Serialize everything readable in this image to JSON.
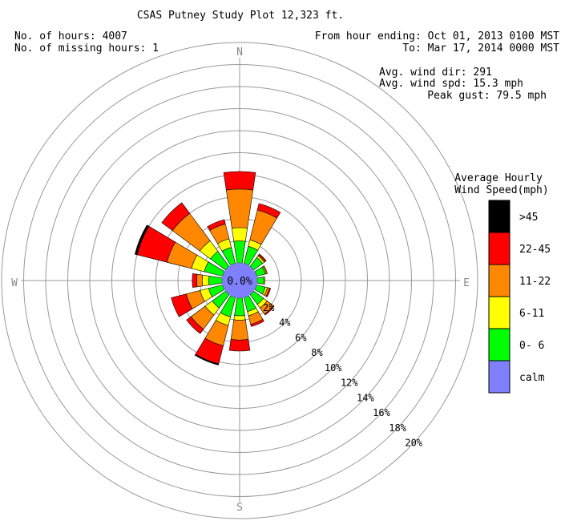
{
  "header": {
    "title": "CSAS Putney Study Plot 12,323 ft.",
    "hours_label": "No. of hours: 4007",
    "missing_label": "No. of missing hours: 1",
    "period_from": "From hour ending: Oct 01, 2013 0100 MST",
    "period_to": "To: Mar 17, 2014 0000 MST",
    "avg_dir": "Avg. wind dir: 291",
    "avg_spd": "Avg. wind spd: 15.3 mph",
    "peak_gust": "Peak gust: 79.5 mph"
  },
  "compass": {
    "n": "N",
    "e": "E",
    "s": "S",
    "w": "W"
  },
  "center_label": "0.0%",
  "legend": {
    "title_line1": "Average Hourly",
    "title_line2": "Wind Speed(mph)",
    "items": [
      {
        "label": ">45",
        "color": "#000000"
      },
      {
        "label": "22-45",
        "color": "#ff0000"
      },
      {
        "label": "11-22",
        "color": "#ff8800"
      },
      {
        "label": "6-11",
        "color": "#ffff00"
      },
      {
        "label": "0- 6",
        "color": "#00ff00"
      },
      {
        "label": "calm",
        "color": "#8080ff"
      }
    ]
  },
  "chart_data": {
    "type": "wind-rose",
    "title": "CSAS Putney Study Plot 12,323 ft.",
    "ring_labels": [
      "2%",
      "4%",
      "6%",
      "8%",
      "10%",
      "12%",
      "14%",
      "16%",
      "18%",
      "20%"
    ],
    "rmax_percent": 20,
    "calm_percent": 0.0,
    "speed_bins": [
      "0- 6",
      "6-11",
      "11-22",
      "22-45",
      ">45"
    ],
    "directions": [
      {
        "deg": 0,
        "cumulative": [
          2.0,
          3.2,
          6.7,
          8.3,
          8.3
        ]
      },
      {
        "deg": 22.5,
        "cumulative": [
          1.6,
          2.2,
          5.0,
          5.6,
          5.6
        ]
      },
      {
        "deg": 45,
        "cumulative": [
          1.0,
          1.2,
          1.3,
          1.4,
          1.4
        ]
      },
      {
        "deg": 67.5,
        "cumulative": [
          0.8,
          0.9,
          1.0,
          1.0,
          1.0
        ]
      },
      {
        "deg": 90,
        "cumulative": [
          0.6,
          0.7,
          0.7,
          0.7,
          0.7
        ]
      },
      {
        "deg": 112.5,
        "cumulative": [
          0.8,
          1.0,
          1.2,
          1.3,
          1.3
        ]
      },
      {
        "deg": 135,
        "cumulative": [
          1.1,
          1.5,
          2.2,
          2.3,
          2.3
        ]
      },
      {
        "deg": 157.5,
        "cumulative": [
          1.3,
          1.7,
          2.5,
          2.7,
          2.7
        ]
      },
      {
        "deg": 180,
        "cumulative": [
          1.6,
          2.0,
          3.8,
          4.8,
          4.8
        ]
      },
      {
        "deg": 202.5,
        "cumulative": [
          1.8,
          2.6,
          4.5,
          6.2,
          6.3
        ]
      },
      {
        "deg": 225,
        "cumulative": [
          1.5,
          2.3,
          3.9,
          4.4,
          4.4
        ]
      },
      {
        "deg": 247.5,
        "cumulative": [
          1.3,
          2.1,
          3.4,
          4.8,
          4.8
        ]
      },
      {
        "deg": 270,
        "cumulative": [
          1.2,
          1.8,
          2.3,
          2.7,
          2.7
        ]
      },
      {
        "deg": 292.5,
        "cumulative": [
          1.7,
          2.9,
          5.2,
          8.0,
          8.2
        ]
      },
      {
        "deg": 315,
        "cumulative": [
          1.7,
          2.9,
          6.0,
          7.2,
          7.2
        ]
      },
      {
        "deg": 337.5,
        "cumulative": [
          1.5,
          2.3,
          3.7,
          4.1,
          4.1
        ]
      }
    ]
  }
}
